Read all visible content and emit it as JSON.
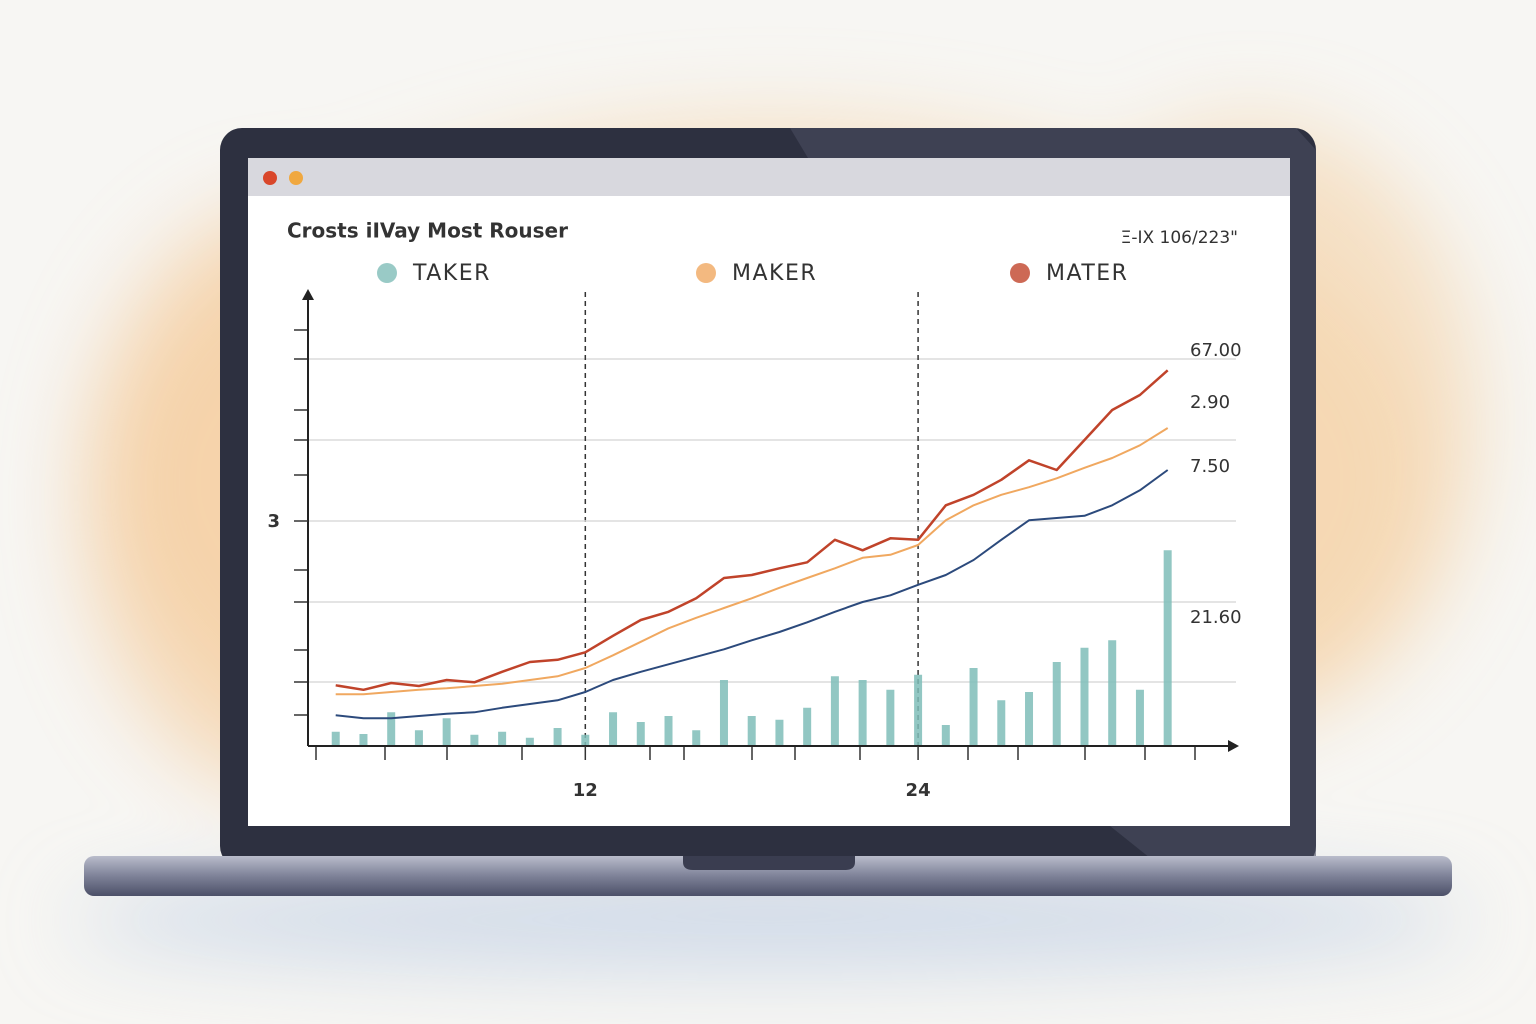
{
  "chart_data": {
    "type": "line",
    "title": "Crosts iIVay Most Rouser",
    "subtitle": "Ξ-IX 106/223\"",
    "x": [
      3,
      4,
      5,
      6,
      7,
      8,
      9,
      10,
      11,
      12,
      13,
      14,
      15,
      16,
      17,
      18,
      19,
      20,
      21,
      22,
      23,
      24,
      25,
      26,
      27,
      28,
      29,
      30,
      31,
      32,
      33
    ],
    "xlim": [
      2,
      35.5
    ],
    "xticks": [
      12,
      24
    ],
    "ylim": [
      0,
      6
    ],
    "yticks": [
      3
    ],
    "annotations": [
      "67.00",
      "2.90",
      "7.50",
      "21.60"
    ],
    "series": [
      {
        "name": "TAKER",
        "type": "bar",
        "color": "#7fbdb8",
        "values": [
          0.19,
          0.16,
          0.45,
          0.21,
          0.37,
          0.15,
          0.19,
          0.11,
          0.24,
          0.15,
          0.45,
          0.32,
          0.4,
          0.21,
          0.88,
          0.4,
          0.35,
          0.51,
          0.93,
          0.88,
          0.75,
          0.95,
          0.28,
          1.04,
          0.61,
          0.72,
          1.12,
          1.31,
          1.41,
          0.75,
          2.61
        ]
      },
      {
        "name": "MAKER",
        "type": "line",
        "color": "#f0a860",
        "values": [
          0.69,
          0.69,
          0.72,
          0.75,
          0.77,
          0.8,
          0.83,
          0.88,
          0.93,
          1.04,
          1.21,
          1.39,
          1.57,
          1.71,
          1.84,
          1.97,
          2.11,
          2.24,
          2.37,
          2.51,
          2.55,
          2.68,
          3.01,
          3.21,
          3.35,
          3.45,
          3.57,
          3.71,
          3.84,
          4.01,
          4.24
        ]
      },
      {
        "name": "MATER",
        "type": "line",
        "color": "#c0432a",
        "values": [
          0.81,
          0.75,
          0.84,
          0.8,
          0.88,
          0.85,
          0.99,
          1.12,
          1.15,
          1.25,
          1.47,
          1.68,
          1.79,
          1.97,
          2.24,
          2.28,
          2.37,
          2.45,
          2.75,
          2.61,
          2.77,
          2.75,
          3.21,
          3.35,
          3.55,
          3.81,
          3.68,
          4.08,
          4.48,
          4.68,
          5.01
        ]
      },
      {
        "type": "line",
        "color": "#2c4a7c",
        "values": [
          0.41,
          0.37,
          0.37,
          0.4,
          0.43,
          0.45,
          0.51,
          0.56,
          0.61,
          0.72,
          0.88,
          0.99,
          1.09,
          1.19,
          1.29,
          1.41,
          1.52,
          1.65,
          1.79,
          1.92,
          2.01,
          2.15,
          2.28,
          2.48,
          2.75,
          3.01,
          3.04,
          3.07,
          3.21,
          3.41,
          3.68
        ]
      }
    ]
  }
}
